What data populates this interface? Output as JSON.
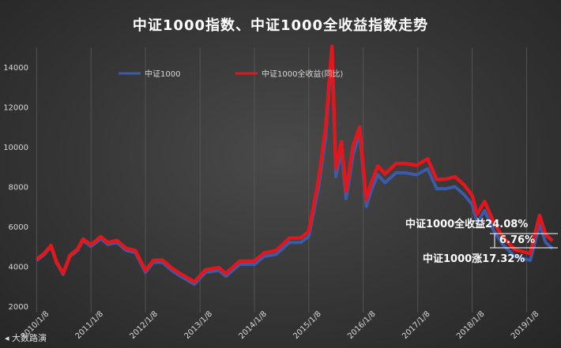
{
  "chart_data": {
    "type": "line",
    "title": "中证1000指数、中证1000全收益指数走势",
    "ylim": [
      2000,
      15000
    ],
    "yticks": [
      2000,
      4000,
      6000,
      8000,
      10000,
      12000,
      14000
    ],
    "xlim": [
      "2010-01-01",
      "2019-07-31"
    ],
    "xticks": [
      "2010/1/8",
      "2011/1/8",
      "2012/1/8",
      "2013/1/8",
      "2014/1/8",
      "2015/1/8",
      "2016/1/8",
      "2017/1/8",
      "2018/1/8",
      "2019/1/8"
    ],
    "legend_position": "top",
    "grid": "vertical",
    "series": [
      {
        "name": "中证1000",
        "color": "#3b5ba8",
        "points": [
          [
            "2010-01-08",
            4300
          ],
          [
            "2010-03-01",
            4600
          ],
          [
            "2010-04-15",
            5000
          ],
          [
            "2010-05-20",
            4200
          ],
          [
            "2010-07-05",
            3600
          ],
          [
            "2010-08-20",
            4500
          ],
          [
            "2010-10-10",
            4800
          ],
          [
            "2010-11-15",
            5300
          ],
          [
            "2011-01-08",
            5000
          ],
          [
            "2011-03-15",
            5400
          ],
          [
            "2011-05-01",
            5100
          ],
          [
            "2011-07-01",
            5200
          ],
          [
            "2011-09-01",
            4800
          ],
          [
            "2011-11-01",
            4700
          ],
          [
            "2012-01-08",
            3700
          ],
          [
            "2012-03-01",
            4200
          ],
          [
            "2012-05-01",
            4200
          ],
          [
            "2012-07-01",
            3800
          ],
          [
            "2012-09-01",
            3500
          ],
          [
            "2012-12-01",
            3100
          ],
          [
            "2013-02-15",
            3700
          ],
          [
            "2013-05-15",
            3800
          ],
          [
            "2013-07-01",
            3500
          ],
          [
            "2013-10-01",
            4100
          ],
          [
            "2014-01-08",
            4100
          ],
          [
            "2014-03-15",
            4500
          ],
          [
            "2014-06-01",
            4600
          ],
          [
            "2014-09-01",
            5200
          ],
          [
            "2014-11-15",
            5200
          ],
          [
            "2015-01-08",
            5500
          ],
          [
            "2015-03-15",
            8000
          ],
          [
            "2015-05-01",
            10500
          ],
          [
            "2015-06-12",
            14800
          ],
          [
            "2015-07-08",
            8500
          ],
          [
            "2015-08-15",
            9800
          ],
          [
            "2015-09-15",
            7400
          ],
          [
            "2015-11-01",
            9600
          ],
          [
            "2015-12-15",
            10700
          ],
          [
            "2016-01-28",
            7000
          ],
          [
            "2016-03-01",
            7800
          ],
          [
            "2016-04-15",
            8600
          ],
          [
            "2016-06-01",
            8200
          ],
          [
            "2016-08-15",
            8700
          ],
          [
            "2016-10-15",
            8700
          ],
          [
            "2016-12-31",
            8600
          ],
          [
            "2017-03-15",
            8900
          ],
          [
            "2017-05-15",
            7900
          ],
          [
            "2017-07-15",
            7900
          ],
          [
            "2017-09-15",
            8000
          ],
          [
            "2017-11-15",
            7600
          ],
          [
            "2018-01-08",
            7100
          ],
          [
            "2018-02-10",
            6200
          ],
          [
            "2018-04-01",
            6800
          ],
          [
            "2018-06-01",
            5800
          ],
          [
            "2018-08-01",
            5100
          ],
          [
            "2018-10-20",
            4500
          ],
          [
            "2018-12-15",
            4400
          ],
          [
            "2019-02-01",
            4300
          ],
          [
            "2019-04-05",
            6100
          ],
          [
            "2019-05-15",
            5200
          ],
          [
            "2019-06-30",
            4900
          ]
        ]
      },
      {
        "name": "中证1000全收益(同比)",
        "color": "#e0171c",
        "points": [
          [
            "2010-01-08",
            4350
          ],
          [
            "2010-03-01",
            4650
          ],
          [
            "2010-04-15",
            5050
          ],
          [
            "2010-05-20",
            4250
          ],
          [
            "2010-07-05",
            3650
          ],
          [
            "2010-08-20",
            4560
          ],
          [
            "2010-10-10",
            4860
          ],
          [
            "2010-11-15",
            5370
          ],
          [
            "2011-01-08",
            5080
          ],
          [
            "2011-03-15",
            5490
          ],
          [
            "2011-05-01",
            5190
          ],
          [
            "2011-07-01",
            5300
          ],
          [
            "2011-09-01",
            4900
          ],
          [
            "2011-11-01",
            4800
          ],
          [
            "2012-01-08",
            3800
          ],
          [
            "2012-03-01",
            4300
          ],
          [
            "2012-05-01",
            4320
          ],
          [
            "2012-07-01",
            3920
          ],
          [
            "2012-09-01",
            3620
          ],
          [
            "2012-12-01",
            3220
          ],
          [
            "2013-02-15",
            3830
          ],
          [
            "2013-05-15",
            3940
          ],
          [
            "2013-07-01",
            3640
          ],
          [
            "2013-10-01",
            4260
          ],
          [
            "2014-01-08",
            4270
          ],
          [
            "2014-03-15",
            4680
          ],
          [
            "2014-06-01",
            4800
          ],
          [
            "2014-09-01",
            5420
          ],
          [
            "2014-11-15",
            5430
          ],
          [
            "2015-01-08",
            5760
          ],
          [
            "2015-03-15",
            8380
          ],
          [
            "2015-05-01",
            11000
          ],
          [
            "2015-06-12",
            15050
          ],
          [
            "2015-07-08",
            8920
          ],
          [
            "2015-08-15",
            10250
          ],
          [
            "2015-09-15",
            7780
          ],
          [
            "2015-11-01",
            10060
          ],
          [
            "2015-12-15",
            11000
          ],
          [
            "2016-01-28",
            7350
          ],
          [
            "2016-03-01",
            8200
          ],
          [
            "2016-04-15",
            9040
          ],
          [
            "2016-06-01",
            8640
          ],
          [
            "2016-08-15",
            9160
          ],
          [
            "2016-10-15",
            9170
          ],
          [
            "2016-12-31",
            9080
          ],
          [
            "2017-03-15",
            9400
          ],
          [
            "2017-05-15",
            8360
          ],
          [
            "2017-07-15",
            8380
          ],
          [
            "2017-09-15",
            8500
          ],
          [
            "2017-11-15",
            8090
          ],
          [
            "2018-01-08",
            7560
          ],
          [
            "2018-02-10",
            6620
          ],
          [
            "2018-04-01",
            7260
          ],
          [
            "2018-06-01",
            6220
          ],
          [
            "2018-08-01",
            5470
          ],
          [
            "2018-10-20",
            4840
          ],
          [
            "2018-12-15",
            4740
          ],
          [
            "2019-02-01",
            4640
          ],
          [
            "2019-04-05",
            6560
          ],
          [
            "2019-05-15",
            5600
          ],
          [
            "2019-06-30",
            5280
          ]
        ]
      }
    ],
    "annotations": [
      {
        "text": "中证1000全收益24.08%"
      },
      {
        "text": "6.76%"
      },
      {
        "text": "中证1000涨17.32%"
      }
    ]
  },
  "logo": {
    "text": "大数路演"
  }
}
